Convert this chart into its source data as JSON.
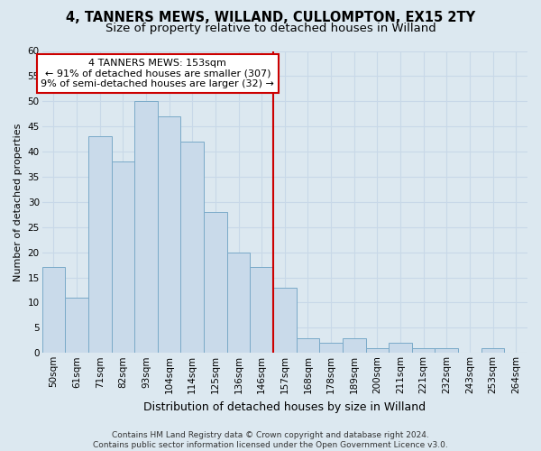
{
  "title": "4, TANNERS MEWS, WILLAND, CULLOMPTON, EX15 2TY",
  "subtitle": "Size of property relative to detached houses in Willand",
  "xlabel": "Distribution of detached houses by size in Willand",
  "ylabel": "Number of detached properties",
  "categories": [
    "50sqm",
    "61sqm",
    "71sqm",
    "82sqm",
    "93sqm",
    "104sqm",
    "114sqm",
    "125sqm",
    "136sqm",
    "146sqm",
    "157sqm",
    "168sqm",
    "178sqm",
    "189sqm",
    "200sqm",
    "211sqm",
    "221sqm",
    "232sqm",
    "243sqm",
    "253sqm",
    "264sqm"
  ],
  "values": [
    17,
    11,
    43,
    38,
    50,
    47,
    42,
    28,
    20,
    17,
    13,
    3,
    2,
    3,
    1,
    2,
    1,
    1,
    0,
    1,
    0
  ],
  "bar_color": "#c9daea",
  "bar_edge_color": "#7aaac8",
  "vline_x_index": 10,
  "vline_color": "#cc0000",
  "annotation_text": "4 TANNERS MEWS: 153sqm\n← 91% of detached houses are smaller (307)\n9% of semi-detached houses are larger (32) →",
  "annotation_box_color": "#ffffff",
  "annotation_box_edge_color": "#cc0000",
  "ylim": [
    0,
    60
  ],
  "yticks": [
    0,
    5,
    10,
    15,
    20,
    25,
    30,
    35,
    40,
    45,
    50,
    55,
    60
  ],
  "grid_color": "#c8d8e8",
  "background_color": "#dce8f0",
  "footer_text": "Contains HM Land Registry data © Crown copyright and database right 2024.\nContains public sector information licensed under the Open Government Licence v3.0.",
  "title_fontsize": 10.5,
  "subtitle_fontsize": 9.5,
  "xlabel_fontsize": 9,
  "ylabel_fontsize": 8,
  "tick_fontsize": 7.5,
  "footer_fontsize": 6.5,
  "annotation_fontsize": 8
}
